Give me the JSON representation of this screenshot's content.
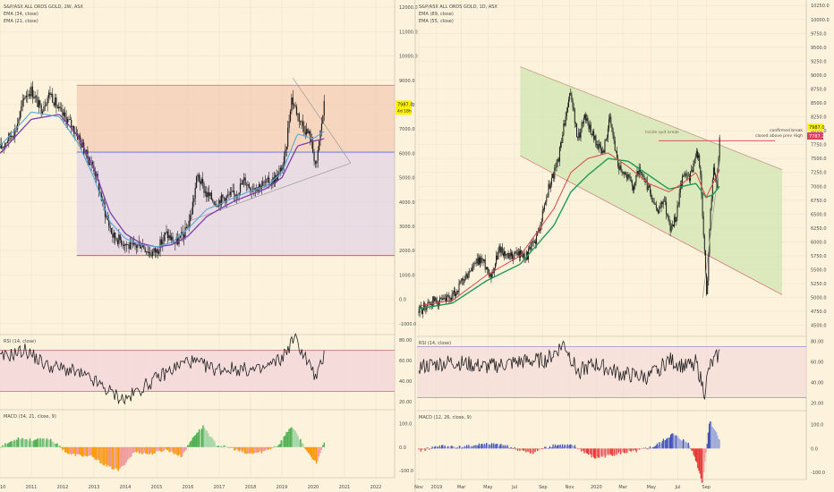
{
  "colors": {
    "background": "#fdf3dc",
    "grid": "#efe4c8",
    "separator": "#b9b2a2",
    "text": "#4a4a4a",
    "candle": "#1d1d1d",
    "ema_fast_weekly": "#57a9d8",
    "ema_slow_weekly": "#7b3fb0",
    "ema_fast_daily": "#d8464a",
    "ema_slow_daily": "#1f9a55",
    "range_upper_fill": "#f2c9b0",
    "range_lower_fill": "#dfd1e6",
    "range_line_top": "#b7777b",
    "range_line_mid": "#5b6fd8",
    "range_line_bottom": "#d04848",
    "channel_fill": "#d3e6b4",
    "channel_line_top": "#c59a88",
    "channel_line_bottom": "#d87e7e",
    "breakout_line": "#e23b5b",
    "triangle_line": "#9a9a9a",
    "rsi_fill": "#f4d5db",
    "rsi_line_upper": "#c76b7b",
    "rsi_line_upper_daily": "#8a7fd0",
    "macd_up": "#4caf50",
    "macd_up_light": "#a5d6a7",
    "macd_down": "#ff9800",
    "macd_down_light": "#ef9a9a",
    "macd_up_daily": "#3f51b5",
    "macd_up_light_daily": "#9fa8da",
    "macd_down_daily": "#e53935",
    "macd_down_light_daily": "#ef9a9a",
    "price_tag_bg": "#fff200",
    "price_tag_red": "#e23b5b"
  },
  "left_chart": {
    "legend": [
      "S&P/ASX ALL ORDS GOLD, 2W, ASX",
      "EMA (34, close)",
      "EMA (21, close)"
    ],
    "y_ticks": [
      "12000.0",
      "11000.0",
      "10000.0",
      "9000.0",
      "8000.0",
      "7000.0",
      "6000.0",
      "5000.0",
      "4000.0",
      "3000.0",
      "2000.0",
      "1000.0",
      "0.0",
      "-1000.0"
    ],
    "y_values": [
      12000,
      11000,
      10000,
      9000,
      8000,
      7000,
      6000,
      5000,
      4000,
      3000,
      2000,
      1000,
      0,
      -1000
    ],
    "x_ticks": [
      "2010",
      "2011",
      "2012",
      "2013",
      "2014",
      "2015",
      "2016",
      "2017",
      "2018",
      "2019",
      "2020",
      "2021",
      "2022"
    ],
    "price_tag": "7987.0",
    "price_tag_sub": "4d 18h",
    "rsi_label": "RSI (14, close)",
    "rsi_ticks": [
      "80.00",
      "60.00",
      "40.00",
      "20.00"
    ],
    "macd_label": "MACD (34, 21, close, 9)",
    "macd_ticks": [
      "100.0",
      "0.0",
      "-100.0"
    ]
  },
  "right_chart": {
    "legend": [
      "S&P/ASX ALL ORDS GOLD, 1D, ASX",
      "EMA (89, close)",
      "EMA (55, close)"
    ],
    "y_ticks": [
      "10250.0",
      "10000.0",
      "9750.0",
      "9500.0",
      "9250.0",
      "9000.0",
      "8750.0",
      "8500.0",
      "8250.0",
      "8000.0",
      "7750.0",
      "7500.0",
      "7250.0",
      "7000.0",
      "6750.0",
      "6500.0",
      "6250.0",
      "6000.0",
      "5750.0",
      "5500.0",
      "5250.0",
      "5000.0",
      "4750.0",
      "4500.0"
    ],
    "y_values": [
      10250,
      10000,
      9750,
      9500,
      9250,
      9000,
      8750,
      8500,
      8250,
      8000,
      7750,
      7500,
      7250,
      7000,
      6750,
      6500,
      6250,
      6000,
      5750,
      5500,
      5250,
      5000,
      4750,
      4500
    ],
    "x_ticks": [
      "Nov",
      "2019",
      "Mar",
      "May",
      "Jul",
      "Sep",
      "Nov",
      "2020",
      "Mar",
      "May",
      "Jul",
      "Sep"
    ],
    "price_tag": "7987.0",
    "price_tag_red": "7787.2",
    "annotation_1": "confirmed break",
    "annotation_2": "closed above prev High",
    "channel_label": "Inside quit break",
    "rsi_label": "RSI (14, close)",
    "rsi_ticks": [
      "80.00",
      "60.00",
      "40.00",
      "20.00"
    ],
    "macd_label": "MACD (12, 26, close, 9)",
    "macd_ticks": [
      "100.0",
      "0.0",
      "-100.0"
    ]
  },
  "chart_data": [
    {
      "type": "line",
      "title": "S&P/ASX ALL ORDS GOLD, 2W, ASX",
      "series": [
        {
          "name": "S&P/ASX ALL ORDS GOLD, 2W, ASX",
          "x": [
            2010.0,
            2010.5,
            2010.8,
            2011.0,
            2011.3,
            2011.6,
            2011.9,
            2012.2,
            2012.5,
            2012.8,
            2013.0,
            2013.3,
            2013.6,
            2013.9,
            2014.2,
            2014.5,
            2014.8,
            2015.0,
            2015.3,
            2015.6,
            2015.9,
            2016.1,
            2016.3,
            2016.6,
            2016.9,
            2017.2,
            2017.5,
            2017.8,
            2018.0,
            2018.3,
            2018.6,
            2018.9,
            2019.1,
            2019.3,
            2019.6,
            2019.9,
            2020.1,
            2020.2,
            2020.35
          ],
          "values": [
            6200,
            7000,
            8400,
            8600,
            7800,
            8500,
            7700,
            7300,
            6700,
            5800,
            5400,
            3800,
            2600,
            2400,
            2100,
            2300,
            1900,
            2000,
            2700,
            2300,
            2700,
            3500,
            5100,
            4300,
            4000,
            4200,
            4300,
            4900,
            4600,
            4700,
            4800,
            5100,
            5800,
            8300,
            7300,
            6700,
            5400,
            6600,
            7987
          ]
        },
        {
          "name": "EMA (34, close)",
          "x": [
            2010.0,
            2011.0,
            2011.9,
            2012.5,
            2013.0,
            2013.5,
            2014.0,
            2014.5,
            2015.0,
            2015.5,
            2016.0,
            2016.6,
            2017.0,
            2017.5,
            2018.0,
            2018.5,
            2019.0,
            2019.5,
            2020.0,
            2020.35
          ],
          "values": [
            6000,
            7400,
            7600,
            6700,
            5400,
            3600,
            2700,
            2300,
            2150,
            2250,
            2600,
            3400,
            3700,
            4050,
            4300,
            4550,
            5000,
            6300,
            6500,
            6600
          ]
        },
        {
          "name": "EMA (21, close)",
          "x": [
            2010.0,
            2011.0,
            2011.9,
            2012.5,
            2013.0,
            2013.5,
            2014.0,
            2014.5,
            2015.0,
            2015.5,
            2016.0,
            2016.6,
            2017.0,
            2017.5,
            2018.0,
            2018.5,
            2019.0,
            2019.5,
            2020.0,
            2020.35
          ],
          "values": [
            6300,
            7700,
            7500,
            6400,
            5000,
            3200,
            2500,
            2250,
            2150,
            2350,
            2900,
            3700,
            3900,
            4200,
            4450,
            4650,
            5200,
            6800,
            6600,
            6900
          ]
        }
      ],
      "xlim": [
        2010.0,
        2022.6
      ],
      "ylim": [
        -1300,
        12300
      ]
    },
    {
      "type": "line",
      "title": "S&P/ASX ALL ORDS GOLD, 1D, ASX",
      "series": [
        {
          "name": "S&P/ASX ALL ORDS GOLD, 1D, ASX",
          "x": [
            0,
            20,
            45,
            70,
            100,
            125,
            155,
            185,
            215,
            240,
            265,
            290,
            320,
            350,
            385,
            410,
            430,
            450,
            470,
            490,
            510,
            532,
            545,
            565,
            590,
            615,
            635,
            650,
            665,
            685,
            705,
            725,
            745,
            762,
            775,
            790,
            800,
            812,
            822,
            832,
            842,
            852,
            862,
            872,
            882,
            890
          ],
          "values": [
            4750,
            4850,
            4950,
            4900,
            5000,
            5250,
            5500,
            5700,
            5400,
            5900,
            5700,
            5800,
            5750,
            6100,
            7000,
            7400,
            8100,
            8700,
            7800,
            8300,
            8000,
            7700,
            7600,
            8200,
            7400,
            7200,
            7000,
            7300,
            7100,
            6900,
            6500,
            6800,
            6200,
            6500,
            7000,
            7300,
            7100,
            7400,
            7700,
            7300,
            6200,
            5000,
            6500,
            7300,
            7000,
            7950
          ]
        },
        {
          "name": "EMA (89, close)",
          "x": [
            0,
            100,
            200,
            300,
            400,
            450,
            500,
            560,
            620,
            680,
            740,
            780,
            820,
            850,
            870,
            890
          ],
          "values": [
            4800,
            4900,
            5300,
            5600,
            6300,
            6900,
            7200,
            7500,
            7450,
            7200,
            6950,
            7000,
            7050,
            6800,
            6850,
            7000
          ]
        },
        {
          "name": "EMA (55, close)",
          "x": [
            0,
            100,
            200,
            300,
            400,
            450,
            500,
            560,
            620,
            680,
            740,
            780,
            820,
            850,
            870,
            890
          ],
          "values": [
            4850,
            4950,
            5400,
            5750,
            6600,
            7250,
            7500,
            7600,
            7350,
            7050,
            6900,
            7050,
            7250,
            6800,
            7050,
            7300
          ]
        }
      ],
      "ylim": [
        4350,
        10350
      ]
    }
  ]
}
